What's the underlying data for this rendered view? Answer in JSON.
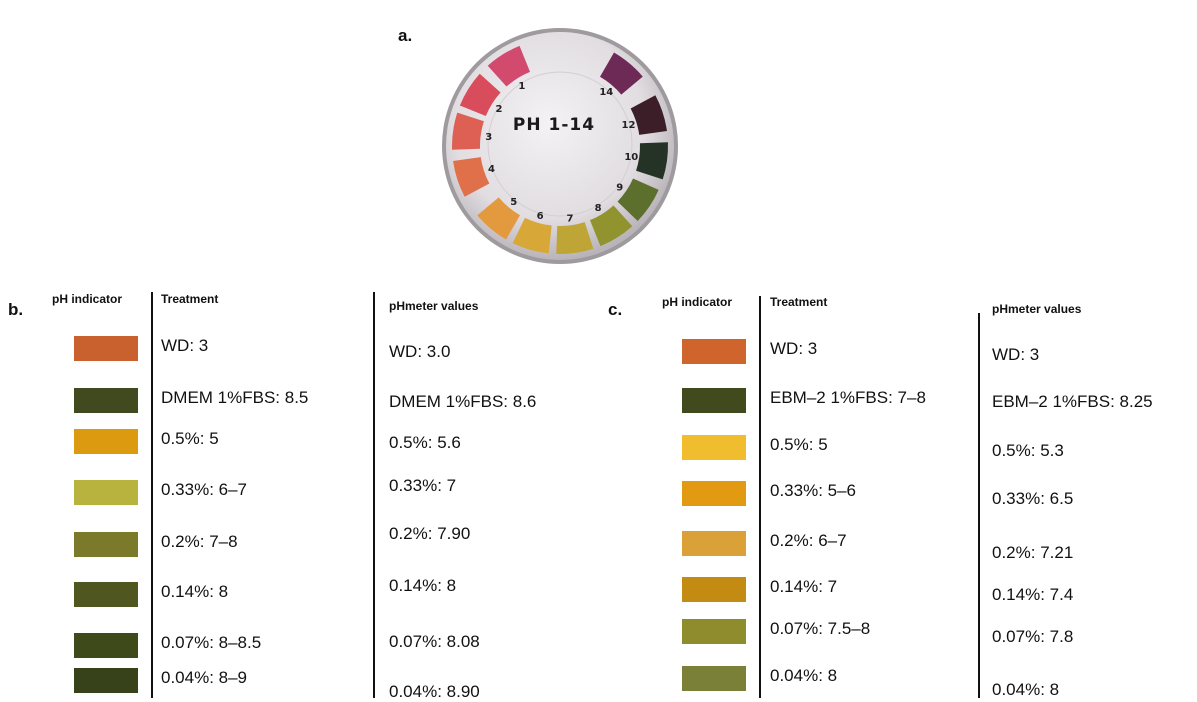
{
  "panel_a": {
    "letter": "a.",
    "card_title": "PH 1-14",
    "chart": [
      {
        "n": "1",
        "color": "#d24a6e"
      },
      {
        "n": "2",
        "color": "#d94c5c"
      },
      {
        "n": "3",
        "color": "#de6054"
      },
      {
        "n": "4",
        "color": "#e0704a"
      },
      {
        "n": "5",
        "color": "#e39a3f"
      },
      {
        "n": "6",
        "color": "#d7a738"
      },
      {
        "n": "7",
        "color": "#bfa536"
      },
      {
        "n": "8",
        "color": "#91932e"
      },
      {
        "n": "9",
        "color": "#5c6f2c"
      },
      {
        "n": "10",
        "color": "#243325"
      },
      {
        "n": "12",
        "color": "#3b1e28"
      },
      {
        "n": "14",
        "color": "#6e2a57"
      }
    ]
  },
  "panel_b": {
    "letter": "b.",
    "headers": {
      "indicator": "pH indicator",
      "treatment": "Treatment",
      "meter": "pHmeter values"
    },
    "rows": [
      {
        "color": "#c9612e",
        "treatment": "WD: 3",
        "meter": "WD: 3.0"
      },
      {
        "color": "#414a1e",
        "treatment": "DMEM 1%FBS: 8.5",
        "meter": "DMEM 1%FBS: 8.6"
      },
      {
        "color": "#dc9a10",
        "treatment": "0.5%: 5",
        "meter": "0.5%: 5.6"
      },
      {
        "color": "#b7b33e",
        "treatment": "0.33%: 6–7",
        "meter": "0.33%: 7"
      },
      {
        "color": "#7b7a2a",
        "treatment": "0.2%: 7–8",
        "meter": "0.2%: 7.90"
      },
      {
        "color": "#4f5620",
        "treatment": "0.14%: 8",
        "meter": "0.14%: 8"
      },
      {
        "color": "#3f4a1a",
        "treatment": "0.07%: 8–8.5",
        "meter": "0.07%: 8.08"
      },
      {
        "color": "#38421a",
        "treatment": "0.04%: 8–9",
        "meter": "0.04%: 8.90"
      }
    ]
  },
  "panel_c": {
    "letter": "c.",
    "headers": {
      "indicator": "pH indicator",
      "treatment": "Treatment",
      "meter": "pHmeter values"
    },
    "rows": [
      {
        "color": "#cf652d",
        "treatment": "WD: 3",
        "meter": "WD: 3"
      },
      {
        "color": "#414a1d",
        "treatment": "EBM–2 1%FBS: 7–8",
        "meter": "EBM–2 1%FBS: 8.25"
      },
      {
        "color": "#efbd2d",
        "treatment": "0.5%: 5",
        "meter": "0.5%: 5.3"
      },
      {
        "color": "#e19a12",
        "treatment": "0.33%: 5–6",
        "meter": "0.33%: 6.5"
      },
      {
        "color": "#d9a137",
        "treatment": "0.2%: 6–7",
        "meter": "0.2%: 7.21"
      },
      {
        "color": "#c48b12",
        "treatment": "0.14%: 7",
        "meter": "0.14%: 7.4"
      },
      {
        "color": "#8f8c2e",
        "treatment": "0.07%: 7.5–8",
        "meter": "0.07%: 7.8"
      },
      {
        "color": "#7b8038",
        "treatment": "0.04%: 8",
        "meter": "0.04%: 8"
      }
    ]
  }
}
